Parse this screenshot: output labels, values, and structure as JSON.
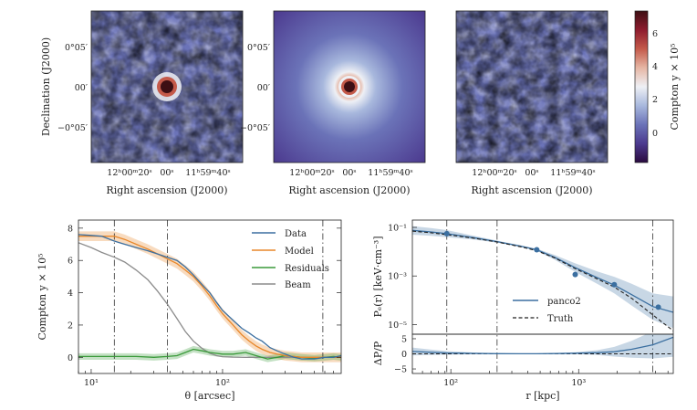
{
  "maps": {
    "panels": [
      {
        "type": "data"
      },
      {
        "type": "model"
      },
      {
        "type": "residuals"
      }
    ],
    "xticks": [
      "12ʰ00ᵐ20ˢ",
      "00ˢ",
      "11ʰ59ᵐ40ˢ"
    ],
    "yticks": [
      "0°05′",
      "00′",
      "−0°05′"
    ],
    "xlabel": "Right ascension (J2000)",
    "ylabel": "Declination (J2000)",
    "colorbar": {
      "label": "Compton y × 10⁵",
      "ticks": [
        "6",
        "4",
        "2",
        "0"
      ],
      "colors": [
        "#2a0a3e",
        "#4c3a8f",
        "#6b73b8",
        "#a8b8dd",
        "#eef0f5",
        "#e6b6a4",
        "#c45a4a",
        "#8e1c2e",
        "#3d0f14"
      ]
    }
  },
  "chart_data": [
    {
      "type": "line",
      "xlabel": "θ [arcsec]",
      "ylabel": "Compton y × 10⁵",
      "xscale": "log",
      "xlim": [
        8,
        800
      ],
      "ylim": [
        -1.0,
        8.5
      ],
      "xticks": [
        "10¹",
        "10²"
      ],
      "yticks": [
        "0",
        "2",
        "4",
        "6",
        "8"
      ],
      "vlines": [
        15,
        38,
        580
      ],
      "grid": false,
      "legend_position": "top-right",
      "series": [
        {
          "name": "Data",
          "color": "#3b6fa0",
          "x": [
            8,
            10,
            12,
            15,
            18,
            22,
            27,
            32,
            38,
            45,
            52,
            60,
            70,
            80,
            90,
            100,
            120,
            140,
            160,
            180,
            200,
            230,
            260,
            300,
            350,
            400,
            500,
            600,
            700,
            800
          ],
          "y": [
            7.6,
            7.55,
            7.5,
            7.2,
            7.0,
            6.8,
            6.6,
            6.4,
            6.2,
            6.0,
            5.6,
            5.1,
            4.5,
            4.0,
            3.4,
            2.9,
            2.3,
            1.8,
            1.5,
            1.2,
            1.0,
            0.6,
            0.4,
            0.2,
            0.0,
            -0.1,
            -0.1,
            0.0,
            0.0,
            0.1
          ]
        },
        {
          "name": "Model",
          "color": "#e8872a",
          "x": [
            8,
            10,
            12,
            15,
            18,
            22,
            27,
            32,
            38,
            45,
            52,
            60,
            70,
            80,
            90,
            100,
            120,
            140,
            160,
            180,
            200,
            230,
            260,
            300,
            350,
            400,
            500,
            600,
            700,
            800
          ],
          "y": [
            7.5,
            7.5,
            7.5,
            7.5,
            7.3,
            7.0,
            6.7,
            6.4,
            6.1,
            5.8,
            5.4,
            5.0,
            4.4,
            3.8,
            3.2,
            2.7,
            2.0,
            1.4,
            1.0,
            0.7,
            0.5,
            0.3,
            0.2,
            0.1,
            0.05,
            0.0,
            0.0,
            0.0,
            0.0,
            0.0
          ]
        },
        {
          "name": "Residuals",
          "color": "#3a9a3a",
          "x": [
            8,
            15,
            22,
            30,
            38,
            45,
            52,
            60,
            70,
            80,
            100,
            120,
            150,
            180,
            220,
            260,
            300,
            400,
            500,
            600,
            700,
            800
          ],
          "y": [
            0.05,
            0.05,
            0.05,
            0.0,
            0.05,
            0.1,
            0.3,
            0.5,
            0.4,
            0.3,
            0.2,
            0.2,
            0.3,
            0.1,
            -0.1,
            0.0,
            0.1,
            0.0,
            -0.05,
            0.0,
            0.05,
            0.0
          ]
        },
        {
          "name": "Beam",
          "color": "#8c8c8c",
          "x": [
            8,
            10,
            12,
            15,
            18,
            22,
            27,
            32,
            38,
            45,
            52,
            60,
            70,
            80,
            90,
            100,
            120,
            150,
            200,
            300,
            800
          ],
          "y": [
            7.1,
            6.8,
            6.5,
            6.2,
            5.9,
            5.4,
            4.8,
            4.1,
            3.3,
            2.4,
            1.6,
            1.0,
            0.55,
            0.25,
            0.1,
            0.04,
            0.01,
            0.0,
            0.0,
            0.0,
            0.0
          ]
        }
      ],
      "bands": [
        {
          "series": "Model",
          "half_width": 0.3
        },
        {
          "series": "Residuals",
          "half_width": 0.2
        }
      ]
    },
    {
      "type": "line",
      "xlabel": "r [kpc]",
      "ylabel": "Pₑ(r) [keV·cm⁻³]",
      "xscale": "log",
      "yscale": "log",
      "xlim": [
        50,
        5500
      ],
      "ylim": [
        4e-06,
        0.2
      ],
      "xticks": [
        "10²",
        "10³"
      ],
      "yticks": [
        "10⁻¹",
        "10⁻³",
        "10⁻⁵"
      ],
      "vlines": [
        93,
        230,
        3800
      ],
      "legend_position": "bottom-right",
      "series": [
        {
          "name": "panco2",
          "color": "#3b6fa0",
          "x": [
            50,
            70,
            93,
            150,
            230,
            350,
            470,
            650,
            940,
            1400,
            1900,
            2600,
            3800,
            5500
          ],
          "y": [
            0.075,
            0.065,
            0.055,
            0.038,
            0.026,
            0.017,
            0.012,
            0.0058,
            0.0022,
            0.00085,
            0.00042,
            0.00017,
            5.5e-05,
            3.2e-05
          ]
        },
        {
          "name": "Truth",
          "color": "#222222",
          "dash": true,
          "x": [
            50,
            70,
            93,
            150,
            230,
            350,
            470,
            650,
            940,
            1400,
            1900,
            2600,
            3800,
            5500
          ],
          "y": [
            0.07,
            0.06,
            0.05,
            0.036,
            0.025,
            0.016,
            0.011,
            0.0055,
            0.002,
            0.00075,
            0.00035,
            0.00012,
            2.5e-05,
            5.5e-06
          ]
        }
      ],
      "points": {
        "x": [
          93,
          470,
          940,
          1900,
          4200
        ],
        "y": [
          0.055,
          0.012,
          0.00115,
          0.00044,
          5.2e-05
        ]
      },
      "band_factor": [
        1.5,
        1.45,
        1.4,
        1.2,
        1.1,
        1.08,
        1.1,
        1.25,
        1.5,
        1.8,
        2.2,
        2.8,
        3.5,
        4.5
      ],
      "ratio_panel": {
        "ylabel": "ΔP/P",
        "yticks": [
          "5",
          "0",
          "−5"
        ],
        "ylim": [
          -6.5,
          6.5
        ],
        "x": [
          50,
          70,
          93,
          150,
          230,
          350,
          470,
          650,
          940,
          1400,
          1900,
          2600,
          3800,
          5500
        ],
        "y": [
          0.8,
          0.5,
          0.3,
          0.15,
          0.05,
          0.02,
          0.03,
          0.1,
          0.2,
          0.4,
          0.7,
          1.5,
          3.0,
          5.5
        ],
        "band": [
          1.3,
          0.9,
          0.6,
          0.3,
          0.15,
          0.08,
          0.08,
          0.15,
          0.3,
          0.8,
          1.6,
          2.8,
          4.5,
          6.5
        ]
      }
    }
  ]
}
